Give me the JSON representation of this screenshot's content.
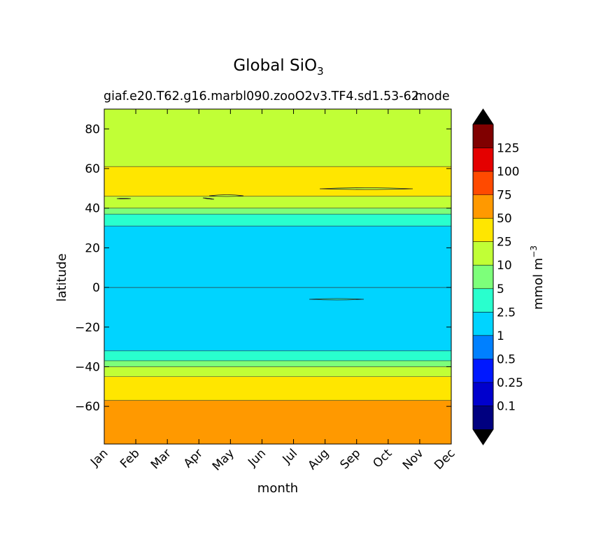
{
  "chart_data": {
    "type": "contour",
    "title": "Global SiO",
    "title_subscript": "3",
    "subtitle": "giaf.e20.T62.g16.marbl090.zooO2v3.TF4.sd1.53-62",
    "subtitle_overlap": "mode",
    "xlabel": "month",
    "ylabel": "latitude",
    "x_categories": [
      "Jan",
      "Feb",
      "Mar",
      "Apr",
      "May",
      "Jun",
      "Jul",
      "Aug",
      "Sep",
      "Oct",
      "Nov",
      "Dec"
    ],
    "ylim": [
      -79,
      90
    ],
    "y_ticks": [
      80,
      60,
      40,
      20,
      0,
      -20,
      -40,
      -60
    ],
    "y_tick_labels": [
      "80",
      "60",
      "40",
      "20",
      "0",
      "−20",
      "−40",
      "−60"
    ],
    "colorbar": {
      "label": "mmol m",
      "label_superscript": "−3",
      "levels": [
        "0.1",
        "0.25",
        "0.5",
        "1",
        "2.5",
        "5",
        "10",
        "25",
        "50",
        "75",
        "100",
        "125"
      ],
      "colors": [
        "#000080",
        "#0000cd",
        "#0018ff",
        "#0080ff",
        "#00d4ff",
        "#29ffce",
        "#7dff7a",
        "#c1ff36",
        "#ffe600",
        "#ff9900",
        "#ff4a00",
        "#e40000",
        "#800000"
      ],
      "extend": "both",
      "extend_colors": [
        "#000000",
        "#000000"
      ]
    },
    "bands": [
      {
        "class": 7,
        "color": "#c1ff36",
        "lat_from": 90,
        "lat_to": 61
      },
      {
        "class": 8,
        "color": "#ffe600",
        "lat_from": 61,
        "lat_to": 46
      },
      {
        "class": 7,
        "color": "#c1ff36",
        "lat_from": 46,
        "lat_to": 40
      },
      {
        "class": 6,
        "color": "#7dff7a",
        "lat_from": 40,
        "lat_to": 37
      },
      {
        "class": 5,
        "color": "#29ffce",
        "lat_from": 37,
        "lat_to": 31
      },
      {
        "class": 4,
        "color": "#00d4ff",
        "lat_from": 31,
        "lat_to": -32
      },
      {
        "class": 5,
        "color": "#29ffce",
        "lat_from": -32,
        "lat_to": -37
      },
      {
        "class": 6,
        "color": "#7dff7a",
        "lat_from": -37,
        "lat_to": -40
      },
      {
        "class": 7,
        "color": "#c1ff36",
        "lat_from": -40,
        "lat_to": -45
      },
      {
        "class": 8,
        "color": "#ffe600",
        "lat_from": -45,
        "lat_to": -57
      },
      {
        "class": 9,
        "color": "#ff9900",
        "lat_from": -57,
        "lat_to": -79
      }
    ]
  }
}
